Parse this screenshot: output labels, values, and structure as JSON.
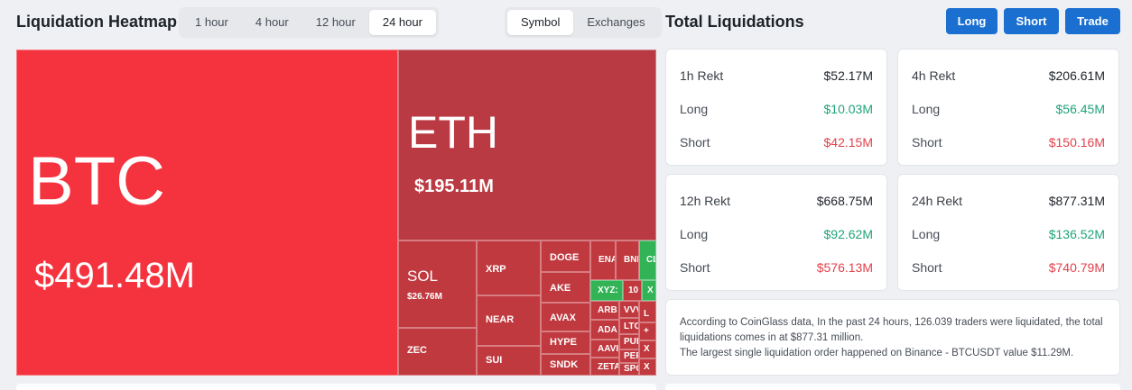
{
  "heatmap": {
    "title": "Liquidation Heatmap",
    "time_options": [
      "1 hour",
      "4 hour",
      "12 hour",
      "24 hour"
    ],
    "time_selected": "24 hour",
    "group_options": [
      "Symbol",
      "Exchanges"
    ],
    "group_selected": "Symbol",
    "cells": {
      "btc": {
        "symbol": "BTC",
        "value": "$491.48M"
      },
      "eth": {
        "symbol": "ETH",
        "value": "$195.11M"
      },
      "sol": {
        "symbol": "SOL",
        "value": "$26.76M"
      },
      "zec": {
        "symbol": "ZEC"
      },
      "xrp": {
        "symbol": "XRP"
      },
      "near": {
        "symbol": "NEAR"
      },
      "sui": {
        "symbol": "SUI"
      },
      "doge": {
        "symbol": "DOGE"
      },
      "ake": {
        "symbol": "AKE"
      },
      "avax": {
        "symbol": "AVAX"
      },
      "hype": {
        "symbol": "HYPE"
      },
      "sndk": {
        "symbol": "SNDK"
      },
      "ena": {
        "symbol": "ENA"
      },
      "bnb": {
        "symbol": "BNI"
      },
      "cl": {
        "symbol": "CL"
      },
      "xyz": {
        "symbol": "XYZ:"
      },
      "ten": {
        "symbol": "10"
      },
      "x": {
        "symbol": "X"
      },
      "arb": {
        "symbol": "ARB"
      },
      "ada": {
        "symbol": "ADA"
      },
      "aave": {
        "symbol": "AAVI"
      },
      "zeta": {
        "symbol": "ZETA"
      },
      "vv": {
        "symbol": "VVV"
      },
      "ltc": {
        "symbol": "LTC"
      },
      "pu": {
        "symbol": "PUI"
      },
      "pe": {
        "symbol": "PEF"
      },
      "sp": {
        "symbol": "SPC"
      },
      "l": {
        "symbol": "L"
      },
      "plus": {
        "symbol": "+"
      },
      "x2": {
        "symbol": "X"
      },
      "x3": {
        "symbol": "X"
      }
    }
  },
  "totals": {
    "title": "Total Liquidations",
    "buttons": {
      "long": "Long",
      "short": "Short",
      "trade": "Trade"
    },
    "labels": {
      "long": "Long",
      "short": "Short"
    },
    "cards": [
      {
        "period": "1h Rekt",
        "total": "$52.17M",
        "long": "$10.03M",
        "short": "$42.15M"
      },
      {
        "period": "4h Rekt",
        "total": "$206.61M",
        "long": "$56.45M",
        "short": "$150.16M"
      },
      {
        "period": "12h Rekt",
        "total": "$668.75M",
        "long": "$92.62M",
        "short": "$576.13M"
      },
      {
        "period": "24h Rekt",
        "total": "$877.31M",
        "long": "$136.52M",
        "short": "$740.79M"
      }
    ],
    "info_line1": "According to CoinGlass data, In the past 24 hours, 126.039 traders were liquidated, the total liquidations comes in at $877.31 million.",
    "info_line2": "The largest single liquidation order happened on Binance - BTCUSDT value $11.29M."
  },
  "colors": {
    "accent": "#1a6fd1",
    "liquidation_red": "#f5333f",
    "positive": "#1fa37a",
    "negative": "#e2414b"
  }
}
